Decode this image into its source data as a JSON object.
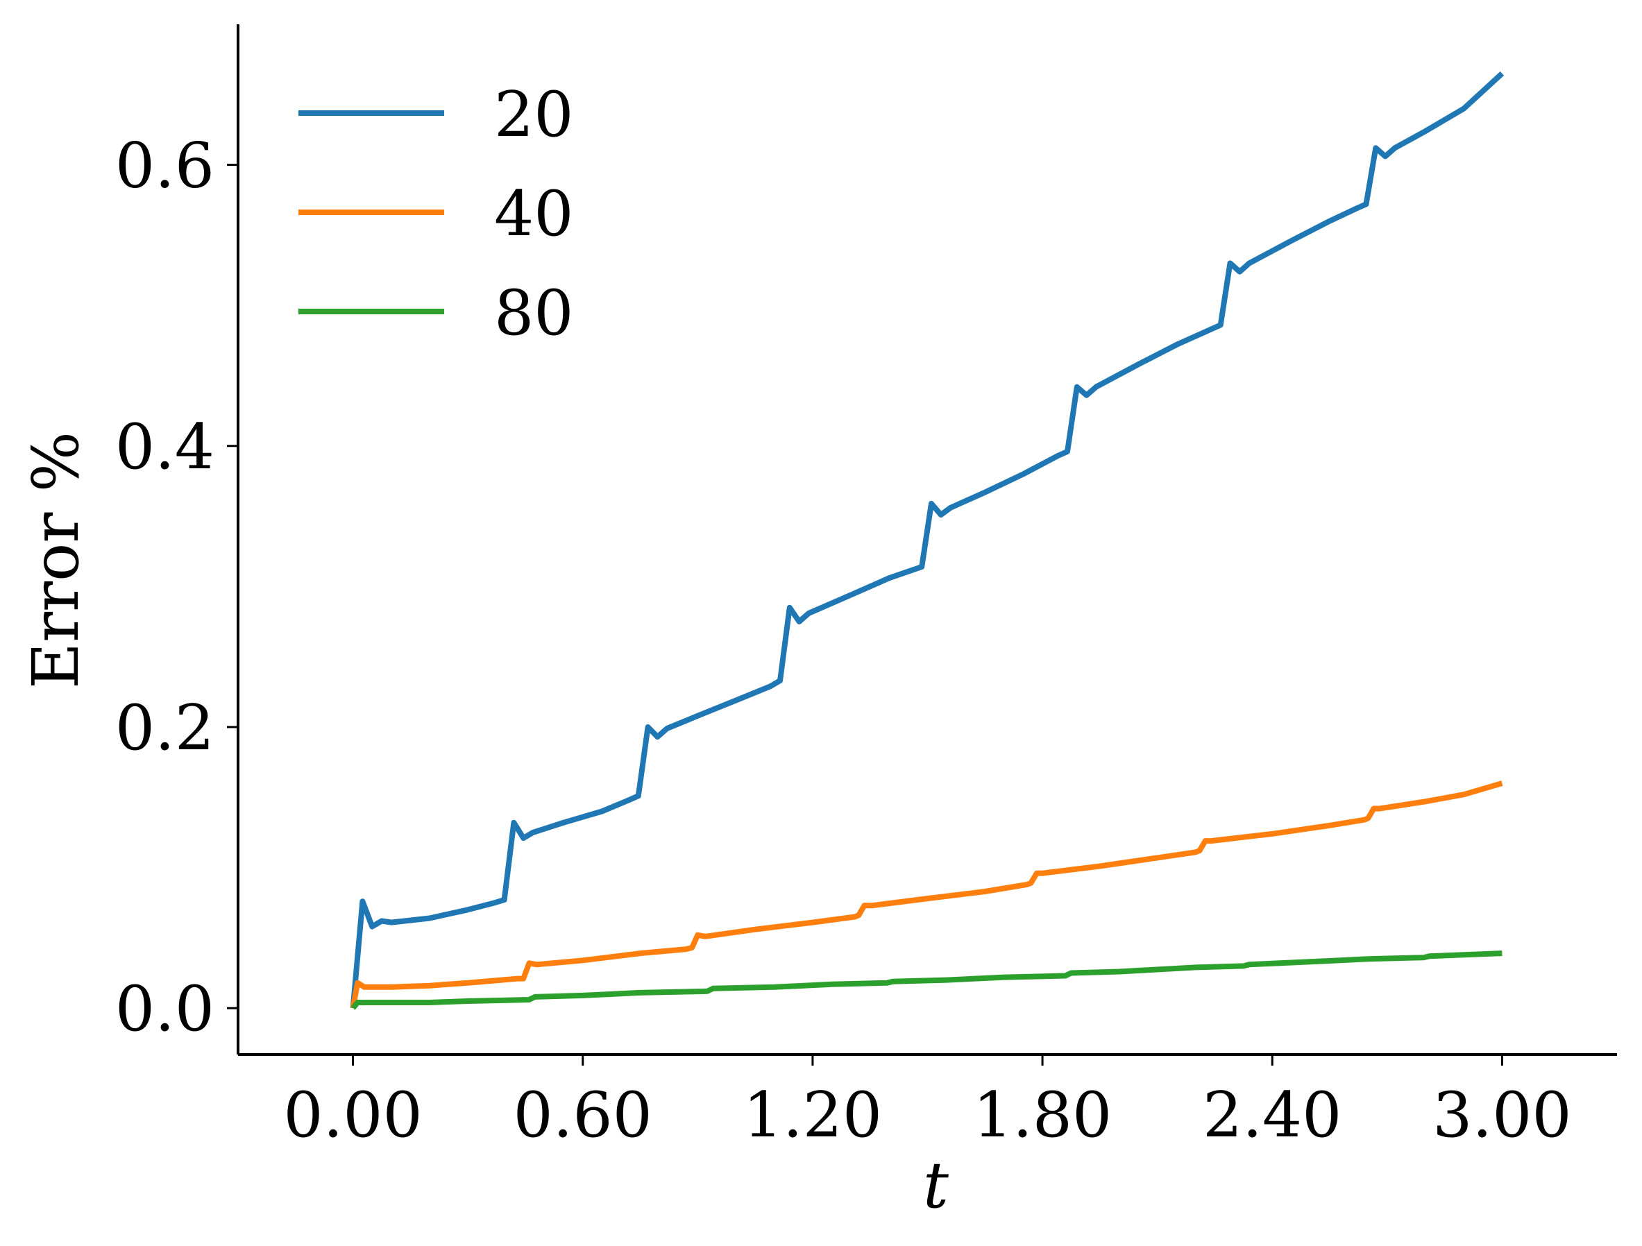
{
  "chart_data": {
    "type": "line",
    "xlabel": "t",
    "ylabel": "Error %",
    "xlim": [
      -0.3,
      3.3
    ],
    "ylim": [
      -0.033,
      0.7
    ],
    "xticks": [
      "0.00",
      "0.60",
      "1.20",
      "1.80",
      "2.40",
      "3.00"
    ],
    "xtick_values": [
      0.0,
      0.6,
      1.2,
      1.8,
      2.4,
      3.0
    ],
    "yticks": [
      "0.0",
      "0.2",
      "0.4",
      "0.6"
    ],
    "ytick_values": [
      0.0,
      0.2,
      0.4,
      0.6
    ],
    "grid": false,
    "legend": {
      "position": "top-left"
    },
    "series": [
      {
        "name": "20",
        "color": "#1f77b4",
        "points": [
          [
            0.0,
            0.0
          ],
          [
            0.025,
            0.076
          ],
          [
            0.05,
            0.058
          ],
          [
            0.075,
            0.062
          ],
          [
            0.1,
            0.061
          ],
          [
            0.2,
            0.064
          ],
          [
            0.3,
            0.07
          ],
          [
            0.37,
            0.075
          ],
          [
            0.395,
            0.077
          ],
          [
            0.42,
            0.132
          ],
          [
            0.445,
            0.121
          ],
          [
            0.47,
            0.125
          ],
          [
            0.55,
            0.132
          ],
          [
            0.65,
            0.14
          ],
          [
            0.72,
            0.148
          ],
          [
            0.745,
            0.151
          ],
          [
            0.77,
            0.2
          ],
          [
            0.795,
            0.193
          ],
          [
            0.82,
            0.199
          ],
          [
            0.9,
            0.208
          ],
          [
            1.0,
            0.219
          ],
          [
            1.09,
            0.229
          ],
          [
            1.115,
            0.233
          ],
          [
            1.14,
            0.285
          ],
          [
            1.165,
            0.275
          ],
          [
            1.19,
            0.281
          ],
          [
            1.3,
            0.294
          ],
          [
            1.4,
            0.306
          ],
          [
            1.485,
            0.314
          ],
          [
            1.51,
            0.359
          ],
          [
            1.535,
            0.351
          ],
          [
            1.56,
            0.356
          ],
          [
            1.65,
            0.367
          ],
          [
            1.75,
            0.38
          ],
          [
            1.84,
            0.393
          ],
          [
            1.865,
            0.396
          ],
          [
            1.89,
            0.442
          ],
          [
            1.915,
            0.436
          ],
          [
            1.94,
            0.442
          ],
          [
            2.05,
            0.458
          ],
          [
            2.15,
            0.472
          ],
          [
            2.24,
            0.483
          ],
          [
            2.265,
            0.486
          ],
          [
            2.29,
            0.53
          ],
          [
            2.315,
            0.524
          ],
          [
            2.34,
            0.53
          ],
          [
            2.45,
            0.546
          ],
          [
            2.55,
            0.56
          ],
          [
            2.62,
            0.569
          ],
          [
            2.645,
            0.572
          ],
          [
            2.67,
            0.612
          ],
          [
            2.695,
            0.606
          ],
          [
            2.72,
            0.612
          ],
          [
            2.8,
            0.624
          ],
          [
            2.9,
            0.64
          ],
          [
            3.0,
            0.665
          ]
        ]
      },
      {
        "name": "40",
        "color": "#ff7f0e",
        "points": [
          [
            0.0,
            0.0
          ],
          [
            0.012,
            0.018
          ],
          [
            0.03,
            0.015
          ],
          [
            0.1,
            0.015
          ],
          [
            0.2,
            0.016
          ],
          [
            0.3,
            0.018
          ],
          [
            0.43,
            0.021
          ],
          [
            0.445,
            0.021
          ],
          [
            0.46,
            0.032
          ],
          [
            0.48,
            0.031
          ],
          [
            0.6,
            0.034
          ],
          [
            0.75,
            0.039
          ],
          [
            0.87,
            0.042
          ],
          [
            0.885,
            0.043
          ],
          [
            0.9,
            0.052
          ],
          [
            0.92,
            0.051
          ],
          [
            1.05,
            0.056
          ],
          [
            1.2,
            0.061
          ],
          [
            1.31,
            0.065
          ],
          [
            1.32,
            0.066
          ],
          [
            1.335,
            0.073
          ],
          [
            1.355,
            0.073
          ],
          [
            1.5,
            0.078
          ],
          [
            1.65,
            0.083
          ],
          [
            1.76,
            0.088
          ],
          [
            1.77,
            0.089
          ],
          [
            1.785,
            0.096
          ],
          [
            1.8,
            0.096
          ],
          [
            1.95,
            0.101
          ],
          [
            2.1,
            0.107
          ],
          [
            2.2,
            0.111
          ],
          [
            2.21,
            0.112
          ],
          [
            2.225,
            0.119
          ],
          [
            2.24,
            0.119
          ],
          [
            2.4,
            0.124
          ],
          [
            2.55,
            0.13
          ],
          [
            2.64,
            0.134
          ],
          [
            2.65,
            0.135
          ],
          [
            2.665,
            0.142
          ],
          [
            2.68,
            0.142
          ],
          [
            2.8,
            0.147
          ],
          [
            2.9,
            0.152
          ],
          [
            3.0,
            0.16
          ]
        ]
      },
      {
        "name": "80",
        "color": "#2ca02c",
        "points": [
          [
            0.0,
            0.0
          ],
          [
            0.012,
            0.004
          ],
          [
            0.1,
            0.004
          ],
          [
            0.2,
            0.004
          ],
          [
            0.3,
            0.005
          ],
          [
            0.46,
            0.006
          ],
          [
            0.475,
            0.008
          ],
          [
            0.6,
            0.009
          ],
          [
            0.75,
            0.011
          ],
          [
            0.925,
            0.012
          ],
          [
            0.94,
            0.014
          ],
          [
            1.1,
            0.015
          ],
          [
            1.25,
            0.017
          ],
          [
            1.395,
            0.018
          ],
          [
            1.41,
            0.019
          ],
          [
            1.55,
            0.02
          ],
          [
            1.7,
            0.022
          ],
          [
            1.86,
            0.023
          ],
          [
            1.875,
            0.025
          ],
          [
            2.0,
            0.026
          ],
          [
            2.2,
            0.029
          ],
          [
            2.325,
            0.03
          ],
          [
            2.34,
            0.031
          ],
          [
            2.5,
            0.033
          ],
          [
            2.65,
            0.035
          ],
          [
            2.795,
            0.036
          ],
          [
            2.81,
            0.037
          ],
          [
            2.9,
            0.038
          ],
          [
            3.0,
            0.039
          ]
        ]
      }
    ]
  }
}
